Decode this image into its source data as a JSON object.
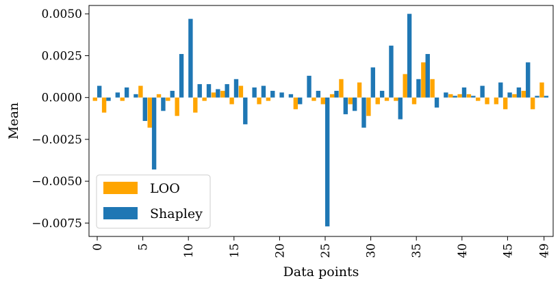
{
  "chart_data": {
    "type": "bar",
    "title": "",
    "xlabel": "Data points",
    "ylabel": "Mean",
    "x": [
      0,
      1,
      2,
      3,
      4,
      5,
      6,
      7,
      8,
      9,
      10,
      11,
      12,
      13,
      14,
      15,
      16,
      17,
      18,
      19,
      20,
      21,
      22,
      23,
      24,
      25,
      26,
      27,
      28,
      29,
      30,
      31,
      32,
      33,
      34,
      35,
      36,
      37,
      38,
      39,
      40,
      41,
      42,
      43,
      44,
      45,
      46,
      47,
      48,
      49
    ],
    "xtick_labels": [
      "0",
      "5",
      "10",
      "15",
      "20",
      "25",
      "30",
      "35",
      "40",
      "45",
      "49"
    ],
    "xtick_values": [
      0,
      5,
      10,
      15,
      20,
      25,
      30,
      35,
      40,
      45,
      49
    ],
    "ytick_labels": [
      "0.0050",
      "0.0025",
      "0.0000",
      "−0.0025",
      "−0.0050",
      "−0.0075"
    ],
    "ytick_values": [
      0.005,
      0.0025,
      0,
      -0.0025,
      -0.005,
      -0.0075
    ],
    "ylim": [
      -0.0083,
      0.0055
    ],
    "xlim": [
      -0.9,
      50
    ],
    "grid": false,
    "legend_position": "lower-left",
    "series": [
      {
        "name": "LOO",
        "color": "#FFA500",
        "values": [
          -0.0002,
          -0.0009,
          0,
          -0.0002,
          0,
          0.0007,
          -0.0018,
          0.0002,
          -0.0002,
          -0.0011,
          0,
          -0.0009,
          -0.0002,
          0.0003,
          0.0004,
          -0.0004,
          0.0007,
          0,
          -0.0004,
          -0.0002,
          0,
          0,
          -0.0007,
          0,
          -0.0002,
          -0.0004,
          0.0002,
          0.0011,
          -0.0004,
          0.0009,
          -0.0011,
          -0.0004,
          -0.0002,
          -0.0002,
          0.0014,
          -0.0004,
          0.0021,
          0.0011,
          0,
          0.0002,
          0.0002,
          0.0002,
          -0.0002,
          -0.0004,
          -0.0004,
          -0.0007,
          0.0002,
          0.0004,
          -0.0007,
          0.0009
        ]
      },
      {
        "name": "Shapley",
        "color": "#1F77B4",
        "values": [
          0.0007,
          -0.0002,
          0.0003,
          0.0006,
          0.0002,
          -0.0014,
          -0.0043,
          -0.0008,
          0.0004,
          0.0026,
          0.0047,
          0.0008,
          0.0008,
          0.0005,
          0.0008,
          0.0011,
          -0.0016,
          0.0006,
          0.0007,
          0.0004,
          0.0003,
          0.0002,
          -0.0004,
          0.0013,
          0.0004,
          -0.0077,
          0.0004,
          -0.001,
          -0.0008,
          -0.0018,
          0.0018,
          0.0004,
          0.0031,
          -0.0013,
          0.005,
          0.0011,
          0.0026,
          -0.0006,
          0.0003,
          0.0001,
          0.0006,
          0.0001,
          0.0007,
          0,
          0.0009,
          0.0003,
          0.0006,
          0.0021,
          0.0001,
          0.0001
        ]
      }
    ]
  }
}
